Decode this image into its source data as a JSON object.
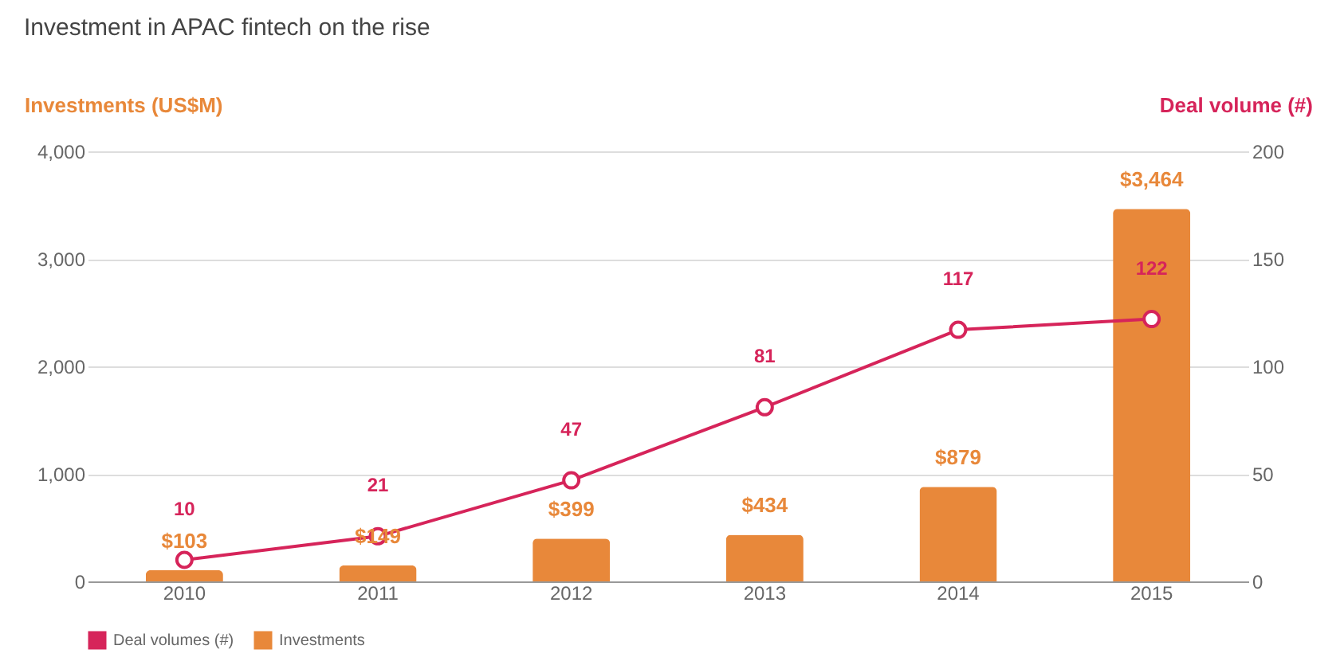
{
  "chart_data": {
    "type": "bar",
    "title": "Investment in APAC fintech on the rise",
    "ylabel": "Investments (US$M)",
    "y2label": "Deal volume (#)",
    "categories": [
      "2010",
      "2011",
      "2012",
      "2013",
      "2014",
      "2015"
    ],
    "series": [
      {
        "name": "Deal volumes (#)",
        "type": "line",
        "axis": "y2",
        "color": "#d6245a",
        "marker": "circle",
        "line_style": "solid",
        "values": [
          10,
          21,
          47,
          81,
          117,
          122
        ],
        "value_labels": [
          "10",
          "21",
          "47",
          "81",
          "117",
          "122"
        ]
      },
      {
        "name": "Investments",
        "color": "#e8883a",
        "values": [
          103,
          149,
          399,
          434,
          879,
          3464
        ],
        "value_labels": [
          "$103",
          "$149",
          "$399",
          "$434",
          "$879",
          "$3,464"
        ]
      }
    ],
    "ylim": [
      0,
      4000
    ],
    "yticks": [
      {
        "value": 0,
        "label": "0"
      },
      {
        "value": 1000,
        "label": "1,000"
      },
      {
        "value": 2000,
        "label": "2,000"
      },
      {
        "value": 3000,
        "label": "3,000"
      },
      {
        "value": 4000,
        "label": "4,000"
      }
    ],
    "y2lim": [
      0,
      200
    ],
    "y2ticks": [
      0,
      50,
      100,
      150,
      200
    ],
    "grid": "y",
    "legend": "bottom"
  }
}
